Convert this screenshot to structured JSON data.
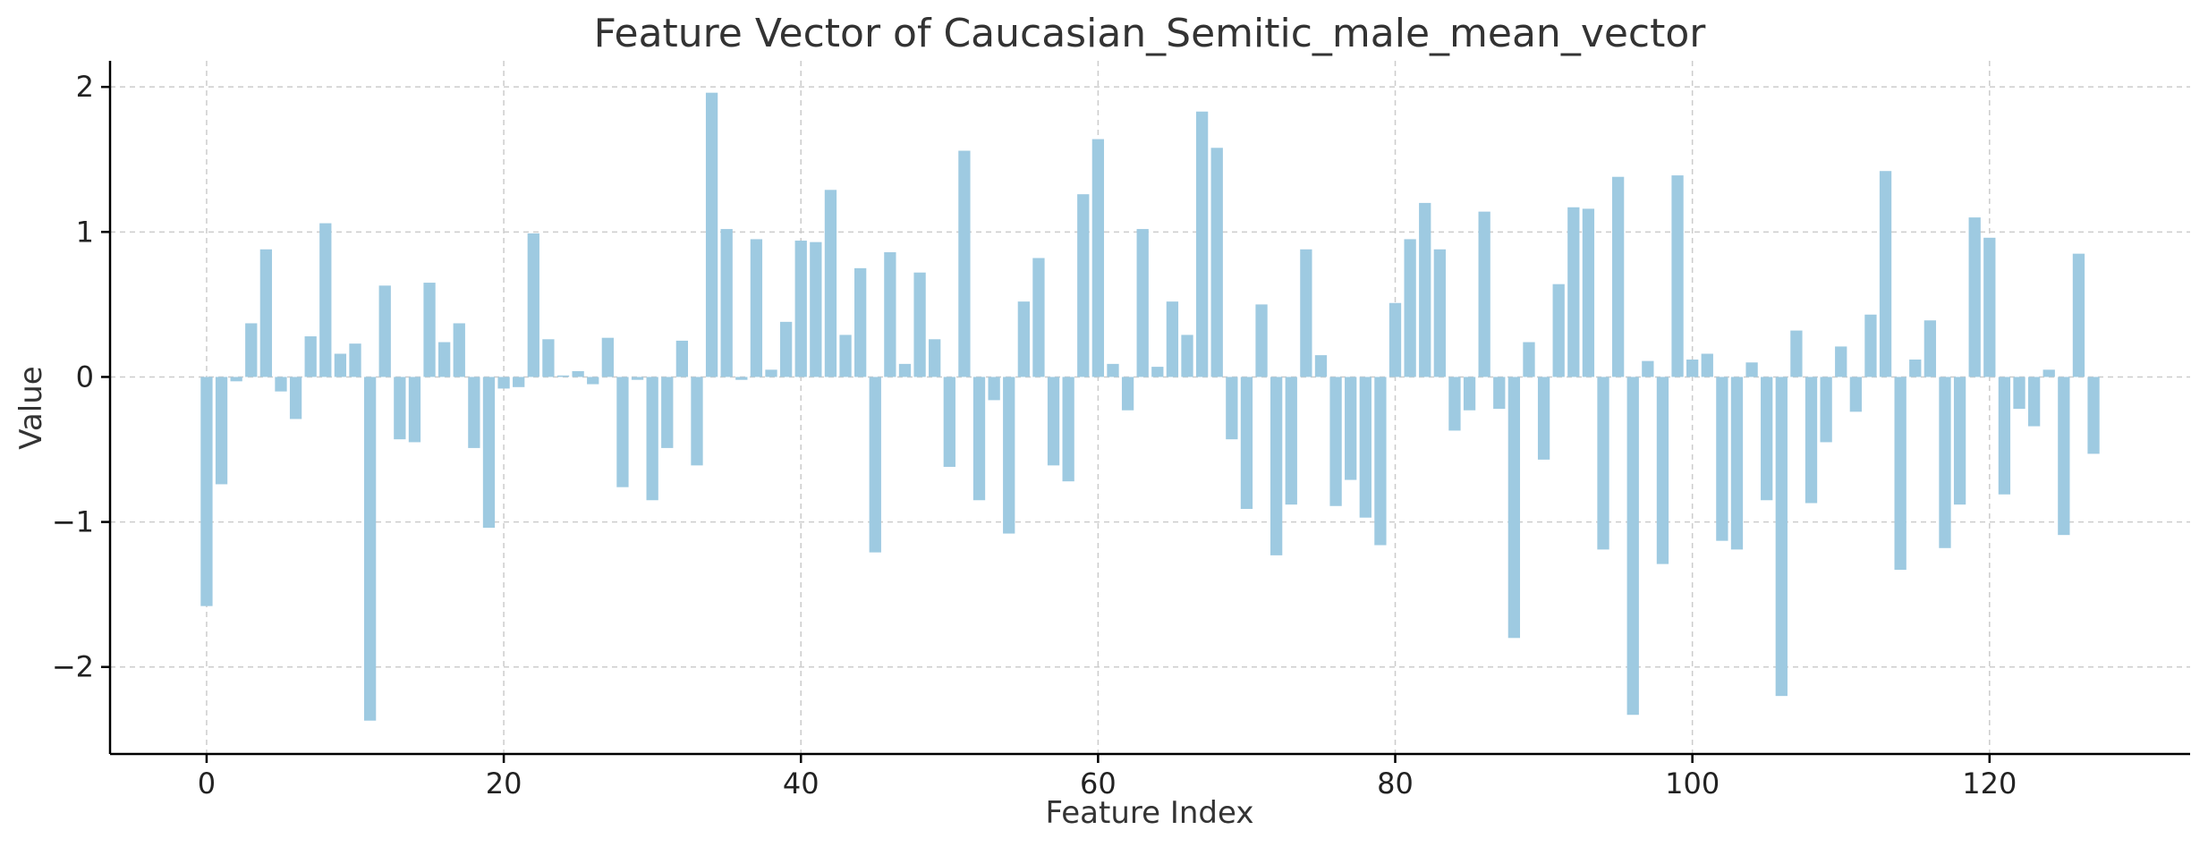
{
  "chart_data": {
    "type": "bar",
    "title": "Feature Vector of Caucasian_Semitic_male_mean_vector",
    "xlabel": "Feature Index",
    "ylabel": "Value",
    "xlim": [
      -6.5,
      133.5
    ],
    "ylim": [
      -2.6,
      2.18
    ],
    "xticks": [
      0,
      20,
      40,
      60,
      80,
      100,
      120
    ],
    "yticks": [
      -2,
      -1,
      0,
      1,
      2
    ],
    "ytick_labels": [
      "−2",
      "−1",
      "0",
      "1",
      "2"
    ],
    "grid": true,
    "bar_color": "#9ecae1",
    "x": [
      0,
      1,
      2,
      3,
      4,
      5,
      6,
      7,
      8,
      9,
      10,
      11,
      12,
      13,
      14,
      15,
      16,
      17,
      18,
      19,
      20,
      21,
      22,
      23,
      24,
      25,
      26,
      27,
      28,
      29,
      30,
      31,
      32,
      33,
      34,
      35,
      36,
      37,
      38,
      39,
      40,
      41,
      42,
      43,
      44,
      45,
      46,
      47,
      48,
      49,
      50,
      51,
      52,
      53,
      54,
      55,
      56,
      57,
      58,
      59,
      60,
      61,
      62,
      63,
      64,
      65,
      66,
      67,
      68,
      69,
      70,
      71,
      72,
      73,
      74,
      75,
      76,
      77,
      78,
      79,
      80,
      81,
      82,
      83,
      84,
      85,
      86,
      87,
      88,
      89,
      90,
      91,
      92,
      93,
      94,
      95,
      96,
      97,
      98,
      99,
      100,
      101,
      102,
      103,
      104,
      105,
      106,
      107,
      108,
      109,
      110,
      111,
      112,
      113,
      114,
      115,
      116,
      117,
      118,
      119,
      120,
      121,
      122,
      123,
      124,
      125,
      126,
      127
    ],
    "values": [
      -1.58,
      -0.74,
      -0.03,
      0.37,
      0.88,
      -0.1,
      -0.29,
      0.28,
      1.06,
      0.16,
      0.23,
      -2.37,
      0.63,
      -0.43,
      -0.45,
      0.65,
      0.24,
      0.37,
      -0.49,
      -1.04,
      -0.08,
      -0.07,
      0.99,
      0.26,
      0.01,
      0.04,
      -0.05,
      0.27,
      -0.76,
      -0.02,
      -0.85,
      -0.49,
      0.25,
      -0.61,
      1.96,
      1.02,
      -0.02,
      0.95,
      0.05,
      0.38,
      0.94,
      0.93,
      1.29,
      0.29,
      0.75,
      -1.21,
      0.86,
      0.09,
      0.72,
      0.26,
      -0.62,
      1.56,
      -0.85,
      -0.16,
      -1.08,
      0.52,
      0.82,
      -0.61,
      -0.72,
      1.26,
      1.64,
      0.09,
      -0.23,
      1.02,
      0.07,
      0.52,
      0.29,
      1.83,
      1.58,
      -0.43,
      -0.91,
      0.5,
      -1.23,
      -0.88,
      0.88,
      0.15,
      -0.89,
      -0.71,
      -0.97,
      -1.16,
      0.51,
      0.95,
      1.2,
      0.88,
      -0.37,
      -0.23,
      1.14,
      -0.22,
      -1.8,
      0.24,
      -0.57,
      0.64,
      1.17,
      1.16,
      -1.19,
      1.38,
      -2.33,
      0.11,
      -1.29,
      1.39,
      0.12,
      0.16,
      -1.13,
      -1.19,
      0.1,
      -0.85,
      -2.2,
      0.32,
      -0.87,
      -0.45,
      0.21,
      -0.24,
      0.43,
      1.42,
      -1.33,
      0.12,
      0.39,
      -1.18,
      -0.88,
      1.1,
      0.96,
      -0.81,
      -0.22,
      -0.34,
      0.05,
      -1.09,
      0.85,
      -0.53
    ]
  }
}
